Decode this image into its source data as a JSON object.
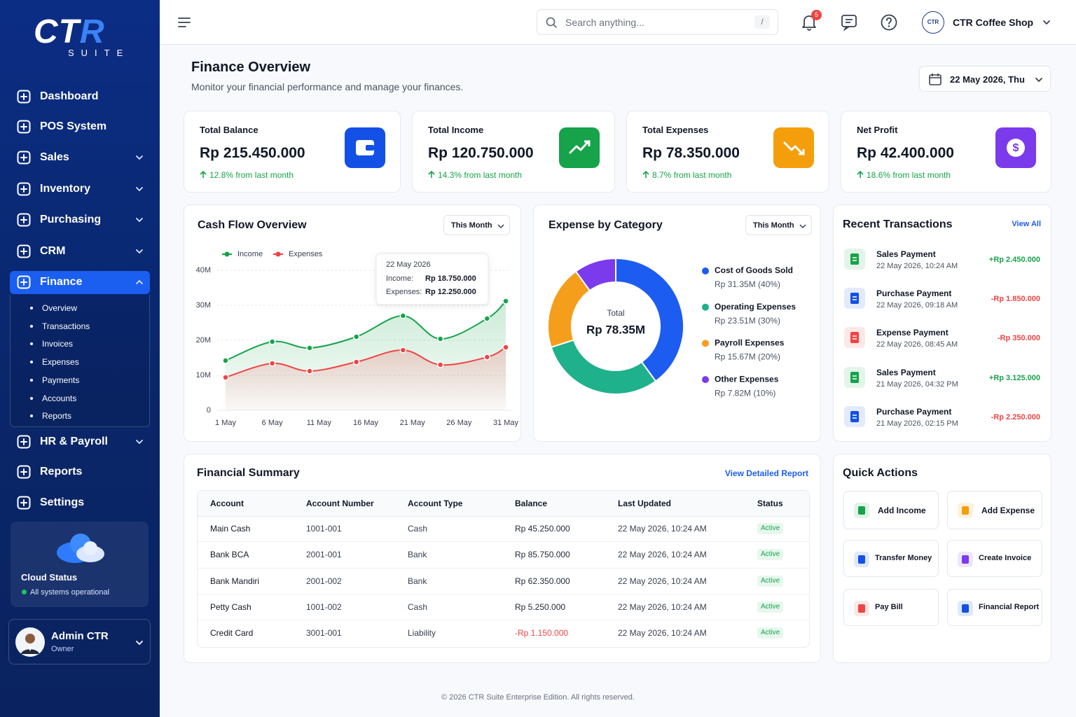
{
  "sidebar": {
    "logo": "CTR",
    "logo_sub": "SUITE",
    "nav": [
      {
        "label": "Dashboard"
      },
      {
        "label": "POS System"
      },
      {
        "label": "Sales",
        "has_submenu": true
      },
      {
        "label": "Inventory",
        "has_submenu": true
      },
      {
        "label": "Purchasing",
        "has_submenu": true
      },
      {
        "label": "CRM",
        "has_submenu": true
      },
      {
        "label": "Finance",
        "has_submenu": true,
        "active": true,
        "submenu": [
          "Overview",
          "Transactions",
          "Invoices",
          "Expenses",
          "Payments",
          "Accounts",
          "Reports"
        ]
      },
      {
        "label": "HR & Payroll",
        "has_submenu": true
      },
      {
        "label": "Reports"
      },
      {
        "label": "Settings"
      }
    ],
    "cloud": {
      "title": "Cloud Status",
      "status": "All systems operational"
    },
    "user": {
      "name": "Admin CTR",
      "role": "Owner"
    }
  },
  "topbar": {
    "search_placeholder": "Search anything...",
    "search_shortcut": "/",
    "notification_count": "5",
    "avatar": "CTR",
    "shop": "CTR Coffee Shop"
  },
  "header": {
    "title": "Finance Overview",
    "subtitle": "Monitor your financial performance and manage your finances.",
    "date": "22 May 2026, Thu"
  },
  "kpis": [
    {
      "label": "Total Balance",
      "value": "Rp 215.450.000",
      "change": "12.8% from last month",
      "color": "#1250e6"
    },
    {
      "label": "Total Income",
      "value": "Rp 120.750.000",
      "change": "14.3% from last month",
      "color": "#16a34a"
    },
    {
      "label": "Total Expenses",
      "value": "Rp 78.350.000",
      "change": "8.7% from last month",
      "color": "#f59e0b"
    },
    {
      "label": "Net Profit",
      "value": "Rp 42.400.000",
      "change": "18.6% from last month",
      "color": "#7c3aed"
    }
  ],
  "chart_data": [
    {
      "type": "line",
      "title": "Cash Flow Overview",
      "filter": "This Month",
      "x": [
        1,
        6,
        10,
        15,
        20,
        24,
        29,
        31
      ],
      "xlim": [
        1,
        31
      ],
      "xticks": [
        {
          "value": 1,
          "label": "1 May"
        },
        {
          "value": 6,
          "label": "6 May"
        },
        {
          "value": 11,
          "label": "11 May"
        },
        {
          "value": 16,
          "label": "16 May"
        },
        {
          "value": 21,
          "label": "21 May"
        },
        {
          "value": 26,
          "label": "26 May"
        },
        {
          "value": 31,
          "label": "31 May"
        }
      ],
      "ylim": [
        0,
        40
      ],
      "yticks": [
        0,
        {
          "value": 10,
          "label": "10M"
        },
        {
          "value": 20,
          "label": "20M"
        },
        {
          "value": 30,
          "label": "30M"
        },
        {
          "value": 40,
          "label": "40M"
        }
      ],
      "grid": true,
      "legend": "top-left",
      "series": [
        {
          "name": "Income",
          "color": "#16a34a",
          "values": [
            14.2,
            19.6,
            17.8,
            21,
            27,
            20.4,
            26.2,
            31.2
          ]
        },
        {
          "name": "Expenses",
          "color": "#ef4444",
          "values": [
            9.4,
            13.4,
            11.2,
            13.8,
            17.2,
            13,
            15.2,
            18
          ]
        }
      ],
      "tooltip": {
        "title": "22 May 2026",
        "rows": [
          {
            "label": "Income:",
            "value": "Rp 18.750.000"
          },
          {
            "label": "Expenses:",
            "value": "Rp 12.250.000"
          }
        ]
      }
    },
    {
      "type": "pie",
      "title": "Expense by Category",
      "filter": "This Month",
      "center_label": "Total",
      "center_value": "Rp 78.35M",
      "categories": [
        "Cost of Goods Sold",
        "Operating Expenses",
        "Payroll Expenses",
        "Other Expenses"
      ],
      "values": [
        40,
        30,
        20,
        10
      ],
      "value_labels": [
        "Rp 31.35M (40%)",
        "Rp 23.51M (30%)",
        "Rp 15.67M (20%)",
        "Rp 7.82M (10%)"
      ],
      "colors": [
        "#1d5cf0",
        "#1fb08c",
        "#f59e1b",
        "#7c3aed"
      ]
    }
  ],
  "transactions": {
    "title": "Recent Transactions",
    "link": "View All",
    "items": [
      {
        "title": "Sales Payment",
        "time": "22 May 2026, 10:24 AM",
        "amount": "+Rp 2.450.000",
        "icon_color": "#16a34a",
        "amount_color": "#16a34a"
      },
      {
        "title": "Purchase Payment",
        "time": "22 May 2026, 09:18 AM",
        "amount": "-Rp 1.850.000",
        "icon_color": "#1250e6",
        "amount_color": "#ef4444"
      },
      {
        "title": "Expense Payment",
        "time": "22 May 2026, 08:45 AM",
        "amount": "-Rp 350.000",
        "icon_color": "#ef4444",
        "amount_color": "#ef4444"
      },
      {
        "title": "Sales Payment",
        "time": "21 May 2026, 04:32 PM",
        "amount": "+Rp 3.125.000",
        "icon_color": "#16a34a",
        "amount_color": "#16a34a"
      },
      {
        "title": "Purchase Payment",
        "time": "21 May 2026, 02:15 PM",
        "amount": "-Rp 2.250.000",
        "icon_color": "#1250e6",
        "amount_color": "#ef4444"
      }
    ]
  },
  "summary": {
    "title": "Financial Summary",
    "link": "View Detailed Report",
    "columns": [
      "Account",
      "Account Number",
      "Account Type",
      "Balance",
      "Last Updated",
      "Status"
    ],
    "rows": [
      [
        "Main Cash",
        "1001-001",
        "Cash",
        "Rp 45.250.000",
        "22 May 2026, 10:24 AM",
        "Active"
      ],
      [
        "Bank BCA",
        "2001-001",
        "Bank",
        "Rp 85.750.000",
        "22 May 2026, 10:24 AM",
        "Active"
      ],
      [
        "Bank Mandiri",
        "2001-002",
        "Bank",
        "Rp 62.350.000",
        "22 May 2026, 10:24 AM",
        "Active"
      ],
      [
        "Petty Cash",
        "1001-002",
        "Cash",
        "Rp 5.250.000",
        "22 May 2026, 10:24 AM",
        "Active"
      ],
      [
        "Credit Card",
        "3001-001",
        "Liability",
        "-Rp 1.150.000",
        "22 May 2026, 10:24 AM",
        "Active"
      ]
    ],
    "balance_colors": [
      "#1f2937",
      "#1f2937",
      "#1f2937",
      "#1f2937",
      "#ef4444"
    ]
  },
  "quick_actions": {
    "title": "Quick Actions",
    "items": [
      {
        "label": "Add Income",
        "color": "#16a34a"
      },
      {
        "label": "Add Expense",
        "color": "#f59e0b"
      },
      {
        "label": "Transfer Money",
        "color": "#1250e6"
      },
      {
        "label": "Create Invoice",
        "color": "#7c3aed"
      },
      {
        "label": "Pay Bill",
        "color": "#ef4444"
      },
      {
        "label": "Financial Report",
        "color": "#1250e6"
      }
    ]
  },
  "footer": "© 2026 CTR Suite Enterprise Edition. All rights reserved."
}
